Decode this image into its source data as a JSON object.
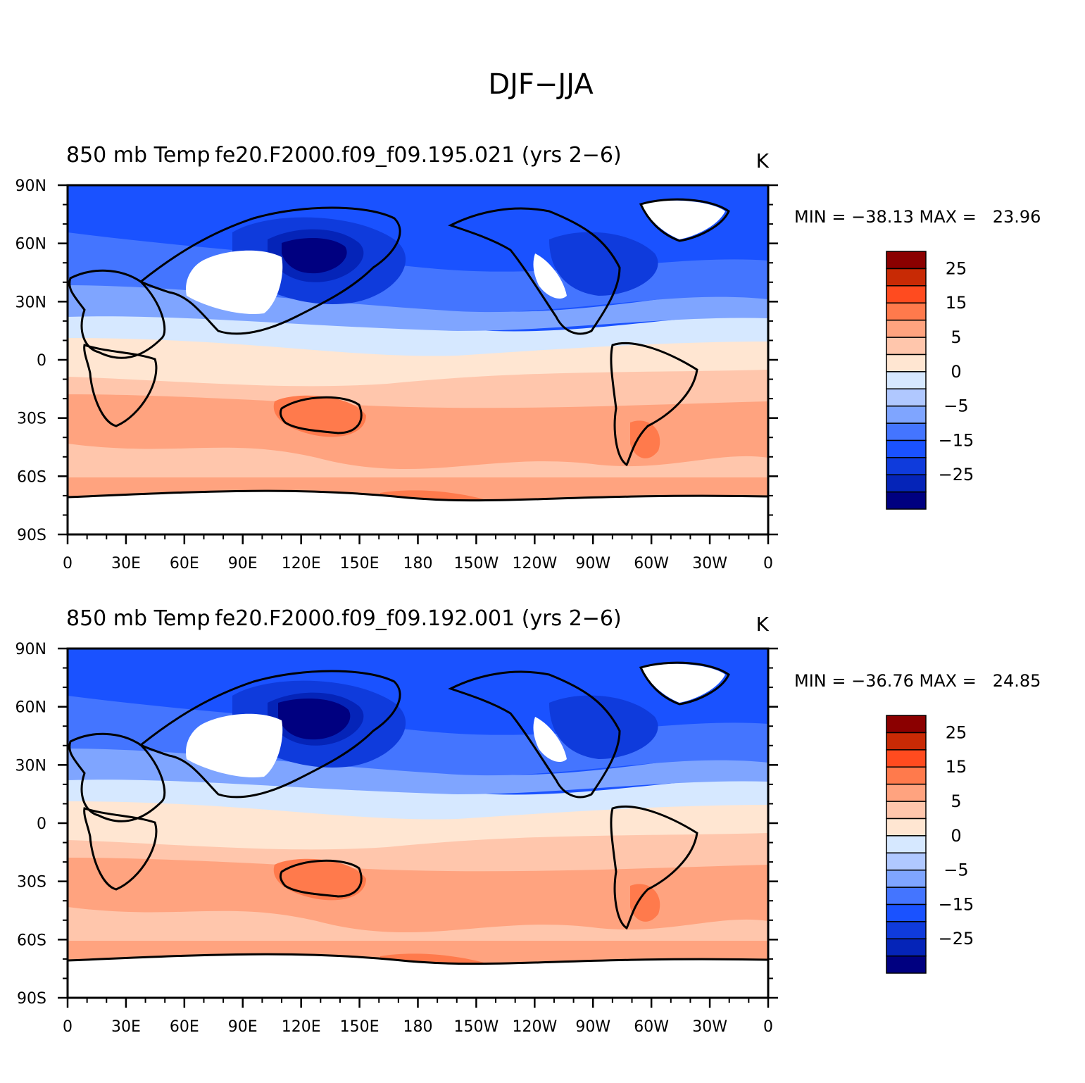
{
  "main_title": "DJF−JJA",
  "panels": [
    {
      "left_label": "850 mb Temp",
      "center_label": "fe20.F2000.f09_f09.195.021 (yrs 2−6)",
      "units": "K",
      "stats": "MIN = −38.13 MAX =   23.96"
    },
    {
      "left_label": "850 mb Temp",
      "center_label": "fe20.F2000.f09_f09.192.001 (yrs 2−6)",
      "units": "K",
      "stats": "MIN = −36.76 MAX =   24.85"
    }
  ],
  "lat_labels": [
    "90N",
    "60N",
    "30N",
    "0",
    "30S",
    "60S",
    "90S"
  ],
  "lon_labels": [
    "0",
    "30E",
    "60E",
    "90E",
    "120E",
    "150E",
    "180",
    "150W",
    "120W",
    "90W",
    "60W",
    "30W",
    "0"
  ],
  "colorbar": {
    "colors": [
      "#000080",
      "#0524b8",
      "#0f3bdc",
      "#1a52ff",
      "#4475ff",
      "#7fa5ff",
      "#b0c8ff",
      "#d6e8ff",
      "#ffe6d2",
      "#ffc6ac",
      "#ffa37f",
      "#ff7a4c",
      "#ff4b1f",
      "#c82a05",
      "#8b0000"
    ],
    "tick_labels": [
      "−25",
      "−15",
      "−5",
      "0",
      "5",
      "15",
      "25"
    ]
  },
  "colors": {
    "ocean_mid_south": "#ffa37f",
    "band_south_light": "#ffc6ac",
    "band_equator": "#ffe6d2",
    "band_tropic_north": "#d6e8ff",
    "band_north_mid": "#7fa5ff",
    "band_north_high": "#1a52ff",
    "siberia_core": "#000080",
    "missing": "#ffffff",
    "coast": "#000000"
  }
}
